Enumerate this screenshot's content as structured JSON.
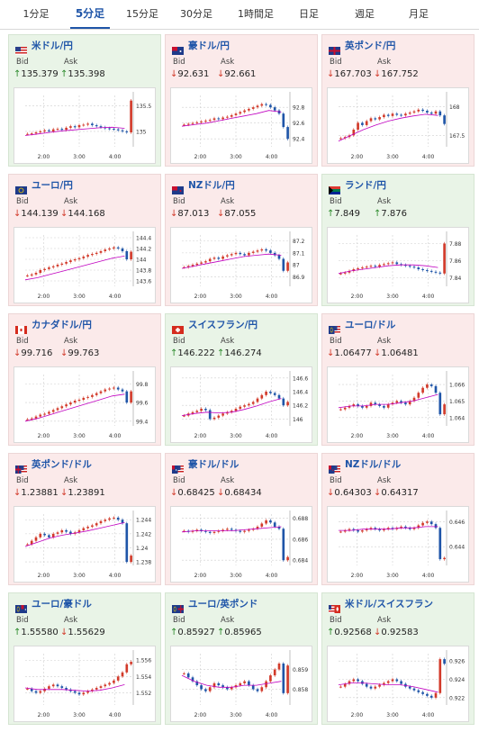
{
  "tabs": [
    {
      "label": "1分足",
      "active": false
    },
    {
      "label": "5分足",
      "active": true
    },
    {
      "label": "15分足",
      "active": false
    },
    {
      "label": "30分足",
      "active": false
    },
    {
      "label": "1時間足",
      "active": false
    },
    {
      "label": "日足",
      "active": false
    },
    {
      "label": "週足",
      "active": false
    },
    {
      "label": "月足",
      "active": false
    }
  ],
  "labels": {
    "bid": "Bid",
    "ask": "Ask"
  },
  "colors": {
    "up_bg": "#e9f4e7",
    "down_bg": "#fbeaea",
    "link": "#1f55a8",
    "up": "#2a8a2a",
    "down": "#d23a2a",
    "candle_up": "#d23a2a",
    "candle_down": "#1f55a8",
    "ma": "#c000c0"
  },
  "cards": [
    {
      "pair": "米ドル/円",
      "flag": "us",
      "state": "up",
      "bid": "135.379",
      "ask": "135.398",
      "bid_dir": "up",
      "ask_dir": "up",
      "chart_data": {
        "type": "candlestick",
        "x_ticks": [
          "2:00",
          "3:00",
          "4:00"
        ],
        "y_ticks": [
          "135.5",
          "135"
        ],
        "ylim": [
          134.7,
          135.7
        ],
        "series": [
          134.95,
          134.96,
          134.98,
          135.0,
          135.02,
          135.0,
          135.04,
          135.05,
          135.03,
          135.07,
          135.1,
          135.08,
          135.12,
          135.13,
          135.15,
          135.12,
          135.1,
          135.08,
          135.06,
          135.05,
          135.04,
          135.02,
          135.0,
          134.98,
          135.6
        ],
        "ma": [
          134.92,
          134.95,
          134.98,
          135.01,
          135.03,
          135.05,
          135.07,
          135.08,
          135.06
        ]
      }
    },
    {
      "pair": "豪ドル/円",
      "flag": "au",
      "state": "down",
      "bid": "92.631",
      "ask": "92.661",
      "bid_dir": "down",
      "ask_dir": "down",
      "chart_data": {
        "type": "candlestick",
        "x_ticks": [
          "2:00",
          "3:00",
          "4:00"
        ],
        "y_ticks": [
          "92.8",
          "92.6",
          "92.4"
        ],
        "ylim": [
          92.3,
          92.95
        ],
        "series": [
          92.58,
          92.59,
          92.6,
          92.61,
          92.62,
          92.63,
          92.64,
          92.66,
          92.65,
          92.67,
          92.68,
          92.7,
          92.72,
          92.74,
          92.76,
          92.78,
          92.8,
          92.82,
          92.84,
          92.83,
          92.8,
          92.76,
          92.72,
          92.55,
          92.4
        ],
        "ma": [
          92.56,
          92.58,
          92.6,
          92.63,
          92.66,
          92.69,
          92.72,
          92.76,
          92.74
        ]
      }
    },
    {
      "pair": "英ポンド/円",
      "flag": "gb",
      "state": "down",
      "bid": "167.703",
      "ask": "167.752",
      "bid_dir": "down",
      "ask_dir": "down",
      "chart_data": {
        "type": "candlestick",
        "x_ticks": [
          "2:00",
          "3:00",
          "4:00"
        ],
        "y_ticks": [
          "168",
          "167.5"
        ],
        "ylim": [
          167.3,
          168.2
        ],
        "series": [
          167.45,
          167.47,
          167.5,
          167.6,
          167.72,
          167.68,
          167.75,
          167.8,
          167.78,
          167.82,
          167.86,
          167.84,
          167.88,
          167.86,
          167.85,
          167.88,
          167.9,
          167.92,
          167.95,
          167.93,
          167.9,
          167.88,
          167.92,
          167.85,
          167.7
        ],
        "ma": [
          167.4,
          167.5,
          167.6,
          167.68,
          167.75,
          167.8,
          167.84,
          167.87,
          167.85
        ]
      }
    },
    {
      "pair": "ユーロ/円",
      "flag": "eu",
      "state": "down",
      "bid": "144.139",
      "ask": "144.168",
      "bid_dir": "down",
      "ask_dir": "down",
      "chart_data": {
        "type": "candlestick",
        "x_ticks": [
          "2:00",
          "3:00",
          "4:00"
        ],
        "y_ticks": [
          "144.4",
          "144.2",
          "144",
          "143.8",
          "143.6"
        ],
        "ylim": [
          143.5,
          144.45
        ],
        "series": [
          143.7,
          143.72,
          143.75,
          143.8,
          143.82,
          143.85,
          143.87,
          143.9,
          143.92,
          143.95,
          143.98,
          144.0,
          144.02,
          144.05,
          144.08,
          144.1,
          144.12,
          144.15,
          144.18,
          144.2,
          144.22,
          144.2,
          144.15,
          144.0,
          144.14
        ],
        "ma": [
          143.62,
          143.66,
          143.72,
          143.78,
          143.84,
          143.9,
          143.96,
          144.02,
          144.06
        ]
      }
    },
    {
      "pair": "NZドル/円",
      "flag": "nz",
      "state": "down",
      "bid": "87.013",
      "ask": "87.055",
      "bid_dir": "down",
      "ask_dir": "down",
      "chart_data": {
        "type": "candlestick",
        "x_ticks": [
          "2:00",
          "3:00",
          "4:00"
        ],
        "y_ticks": [
          "87.2",
          "87.1",
          "87",
          "86.9"
        ],
        "ylim": [
          86.82,
          87.25
        ],
        "series": [
          86.98,
          86.99,
          87.0,
          87.01,
          87.02,
          87.03,
          87.05,
          87.06,
          87.05,
          87.07,
          87.08,
          87.09,
          87.1,
          87.09,
          87.08,
          87.1,
          87.11,
          87.12,
          87.13,
          87.12,
          87.1,
          87.08,
          87.05,
          86.95,
          87.02
        ],
        "ma": [
          86.97,
          86.99,
          87.01,
          87.03,
          87.05,
          87.07,
          87.08,
          87.09,
          87.08
        ]
      }
    },
    {
      "pair": "ランド/円",
      "flag": "za",
      "state": "up",
      "bid": "7.849",
      "ask": "7.876",
      "bid_dir": "up",
      "ask_dir": "up",
      "chart_data": {
        "type": "candlestick",
        "x_ticks": [
          "2:00",
          "3:00",
          "4:00"
        ],
        "y_ticks": [
          "7.88",
          "7.86",
          "7.84"
        ],
        "ylim": [
          7.83,
          7.89
        ],
        "series": [
          7.845,
          7.846,
          7.848,
          7.85,
          7.851,
          7.852,
          7.853,
          7.854,
          7.853,
          7.855,
          7.856,
          7.857,
          7.858,
          7.856,
          7.855,
          7.854,
          7.853,
          7.852,
          7.85,
          7.849,
          7.848,
          7.847,
          7.846,
          7.845,
          7.88
        ],
        "ma": [
          7.845,
          7.848,
          7.85,
          7.852,
          7.854,
          7.855,
          7.855,
          7.854,
          7.852
        ]
      }
    },
    {
      "pair": "カナダドル/円",
      "flag": "ca",
      "state": "down",
      "bid": "99.716",
      "ask": "99.763",
      "bid_dir": "down",
      "ask_dir": "down",
      "chart_data": {
        "type": "candlestick",
        "x_ticks": [
          "2:00",
          "3:00",
          "4:00"
        ],
        "y_ticks": [
          "99.8",
          "99.6",
          "99.4"
        ],
        "ylim": [
          99.35,
          99.9
        ],
        "series": [
          99.42,
          99.43,
          99.45,
          99.47,
          99.48,
          99.5,
          99.52,
          99.54,
          99.56,
          99.58,
          99.6,
          99.62,
          99.63,
          99.65,
          99.66,
          99.68,
          99.7,
          99.72,
          99.74,
          99.75,
          99.76,
          99.74,
          99.72,
          99.6,
          99.72
        ],
        "ma": [
          99.4,
          99.43,
          99.47,
          99.51,
          99.55,
          99.59,
          99.63,
          99.67,
          99.69
        ]
      }
    },
    {
      "pair": "スイスフラン/円",
      "flag": "ch",
      "state": "up",
      "bid": "146.222",
      "ask": "146.274",
      "bid_dir": "up",
      "ask_dir": "up",
      "chart_data": {
        "type": "candlestick",
        "x_ticks": [
          "2:00",
          "3:00",
          "4:00"
        ],
        "y_ticks": [
          "146.6",
          "146.4",
          "146.2",
          "146"
        ],
        "ylim": [
          145.9,
          146.65
        ],
        "series": [
          146.05,
          146.08,
          146.1,
          146.12,
          146.15,
          146.13,
          146.0,
          146.02,
          146.05,
          146.08,
          146.1,
          146.12,
          146.15,
          146.18,
          146.2,
          146.22,
          146.25,
          146.3,
          146.35,
          146.4,
          146.38,
          146.35,
          146.3,
          146.2,
          146.25
        ],
        "ma": [
          146.05,
          146.08,
          146.1,
          146.09,
          146.1,
          146.14,
          146.19,
          146.25,
          146.3
        ]
      }
    },
    {
      "pair": "ユーロ/ドル",
      "flag": "euus",
      "state": "down",
      "bid": "1.06477",
      "ask": "1.06481",
      "bid_dir": "down",
      "ask_dir": "down",
      "chart_data": {
        "type": "candlestick",
        "x_ticks": [
          "2:00",
          "3:00",
          "4:00"
        ],
        "y_ticks": [
          "1.066",
          "1.065",
          "1.064"
        ],
        "ylim": [
          1.0635,
          1.0666
        ],
        "series": [
          1.0645,
          1.0646,
          1.0647,
          1.0648,
          1.0647,
          1.0646,
          1.0647,
          1.0649,
          1.0648,
          1.0647,
          1.0646,
          1.0648,
          1.0649,
          1.065,
          1.0649,
          1.0648,
          1.065,
          1.0652,
          1.0655,
          1.0658,
          1.066,
          1.0659,
          1.0655,
          1.0642,
          1.0648
        ],
        "ma": [
          1.0646,
          1.0647,
          1.0647,
          1.0648,
          1.0648,
          1.0649,
          1.065,
          1.0652,
          1.0654
        ]
      }
    },
    {
      "pair": "英ポンド/ドル",
      "flag": "gbus",
      "state": "down",
      "bid": "1.23881",
      "ask": "1.23891",
      "bid_dir": "down",
      "ask_dir": "down",
      "chart_data": {
        "type": "candlestick",
        "x_ticks": [
          "2:00",
          "3:00",
          "4:00"
        ],
        "y_ticks": [
          "1.244",
          "1.242",
          "1.24",
          "1.238"
        ],
        "ylim": [
          1.2375,
          1.2448
        ],
        "series": [
          1.2405,
          1.241,
          1.2415,
          1.242,
          1.2418,
          1.2415,
          1.242,
          1.2422,
          1.2425,
          1.2423,
          1.242,
          1.2422,
          1.2425,
          1.2428,
          1.243,
          1.2432,
          1.2435,
          1.2438,
          1.244,
          1.2442,
          1.2443,
          1.244,
          1.2435,
          1.238,
          1.2389
        ],
        "ma": [
          1.2402,
          1.2408,
          1.2414,
          1.2418,
          1.2421,
          1.2424,
          1.2428,
          1.2432,
          1.2436
        ]
      }
    },
    {
      "pair": "豪ドル/ドル",
      "flag": "auus",
      "state": "down",
      "bid": "0.68425",
      "ask": "0.68434",
      "bid_dir": "down",
      "ask_dir": "down",
      "chart_data": {
        "type": "candlestick",
        "x_ticks": [
          "2:00",
          "3:00",
          "4:00"
        ],
        "y_ticks": [
          "0.688",
          "0.686",
          "0.684"
        ],
        "ylim": [
          0.6835,
          0.6884
        ],
        "series": [
          0.6868,
          0.6867,
          0.6868,
          0.6869,
          0.6868,
          0.6867,
          0.6866,
          0.6867,
          0.6868,
          0.6869,
          0.687,
          0.6869,
          0.6868,
          0.6867,
          0.6868,
          0.6869,
          0.687,
          0.6872,
          0.6875,
          0.6878,
          0.6876,
          0.6872,
          0.687,
          0.684,
          0.6843
        ],
        "ma": [
          0.6867,
          0.6868,
          0.6868,
          0.6868,
          0.6868,
          0.6869,
          0.687,
          0.6871,
          0.6872
        ]
      }
    },
    {
      "pair": "NZドル/ドル",
      "flag": "nzus",
      "state": "down",
      "bid": "0.64303",
      "ask": "0.64317",
      "bid_dir": "down",
      "ask_dir": "down",
      "chart_data": {
        "type": "candlestick",
        "x_ticks": [
          "2:00",
          "3:00",
          "4:00"
        ],
        "y_ticks": [
          "0.646",
          "0.644"
        ],
        "ylim": [
          0.6425,
          0.6466
        ],
        "series": [
          0.6452,
          0.6453,
          0.6454,
          0.6453,
          0.6452,
          0.6453,
          0.6454,
          0.6455,
          0.6454,
          0.6453,
          0.6454,
          0.6455,
          0.6454,
          0.6455,
          0.6456,
          0.6455,
          0.6454,
          0.6455,
          0.6457,
          0.6459,
          0.646,
          0.6458,
          0.6455,
          0.643,
          0.6431
        ],
        "ma": [
          0.6453,
          0.6453,
          0.6454,
          0.6454,
          0.6454,
          0.6455,
          0.6455,
          0.6456,
          0.6456
        ]
      }
    },
    {
      "pair": "ユーロ/豪ドル",
      "flag": "euau",
      "state": "up",
      "bid": "1.55580",
      "ask": "1.55629",
      "bid_dir": "up",
      "ask_dir": "down",
      "chart_data": {
        "type": "candlestick",
        "x_ticks": [
          "2:00",
          "3:00",
          "4:00"
        ],
        "y_ticks": [
          "1.556",
          "1.554",
          "1.552"
        ],
        "ylim": [
          1.5505,
          1.5568
        ],
        "series": [
          1.5525,
          1.5522,
          1.552,
          1.5522,
          1.5525,
          1.5528,
          1.553,
          1.5528,
          1.5526,
          1.5524,
          1.5522,
          1.552,
          1.5518,
          1.552,
          1.5522,
          1.5524,
          1.5526,
          1.5528,
          1.553,
          1.5532,
          1.5535,
          1.554,
          1.5545,
          1.5555,
          1.5558
        ],
        "ma": [
          1.5526,
          1.5524,
          1.5524,
          1.5524,
          1.5523,
          1.5522,
          1.5523,
          1.5526,
          1.553
        ]
      }
    },
    {
      "pair": "ユーロ/英ポンド",
      "flag": "eugb",
      "state": "up",
      "bid": "0.85927",
      "ask": "0.85965",
      "bid_dir": "up",
      "ask_dir": "up",
      "chart_data": {
        "type": "candlestick",
        "x_ticks": [
          "2:00",
          "3:00",
          "4:00"
        ],
        "y_ticks": [
          "0.859",
          "0.858"
        ],
        "ylim": [
          0.8572,
          0.8598
        ],
        "series": [
          0.8588,
          0.8586,
          0.8584,
          0.8582,
          0.858,
          0.8579,
          0.8581,
          0.8583,
          0.8582,
          0.8581,
          0.858,
          0.8581,
          0.8582,
          0.8583,
          0.8584,
          0.8582,
          0.858,
          0.8579,
          0.8581,
          0.8584,
          0.8587,
          0.859,
          0.8593,
          0.8578,
          0.8592
        ],
        "ma": [
          0.8587,
          0.8584,
          0.8582,
          0.8581,
          0.8581,
          0.8582,
          0.8582,
          0.8583,
          0.8584
        ]
      }
    },
    {
      "pair": "米ドル/スイスフラン",
      "flag": "usch",
      "state": "up",
      "bid": "0.92568",
      "ask": "0.92583",
      "bid_dir": "up",
      "ask_dir": "down",
      "chart_data": {
        "type": "candlestick",
        "x_ticks": [
          "2:00",
          "3:00",
          "4:00"
        ],
        "y_ticks": [
          "0.926",
          "0.924",
          "0.922"
        ],
        "ylim": [
          0.9212,
          0.9268
        ],
        "series": [
          0.9232,
          0.9235,
          0.9238,
          0.924,
          0.9238,
          0.9235,
          0.9232,
          0.923,
          0.9232,
          0.9234,
          0.9236,
          0.9238,
          0.924,
          0.9238,
          0.9235,
          0.9232,
          0.923,
          0.9228,
          0.9226,
          0.9224,
          0.9222,
          0.922,
          0.9225,
          0.9262,
          0.9257
        ],
        "ma": [
          0.9234,
          0.9236,
          0.9236,
          0.9235,
          0.9234,
          0.9234,
          0.9232,
          0.9229,
          0.9226
        ]
      }
    }
  ]
}
